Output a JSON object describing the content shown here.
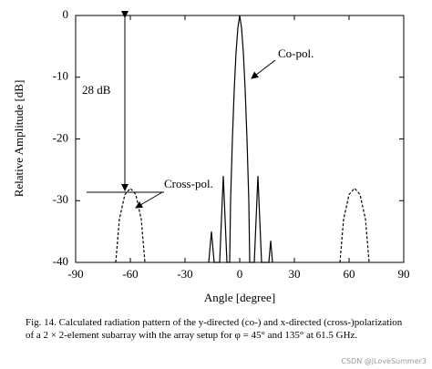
{
  "chart_data": {
    "type": "line",
    "xlabel": "Angle [degree]",
    "ylabel": "Relative Amplitude [dB]",
    "xlim": [
      -90,
      90
    ],
    "xticks": [
      -90,
      -60,
      -30,
      0,
      30,
      60,
      90
    ],
    "ylim": [
      -40,
      0
    ],
    "yticks": [
      0,
      -10,
      -20,
      -30,
      -40
    ],
    "annotation": "28 dB",
    "series": [
      {
        "name": "Co-pol.",
        "color": "#000000",
        "dash": false,
        "x": [
          -17,
          -15.5,
          -14,
          -11,
          -9,
          -7,
          -5.5,
          -5,
          -4,
          -3,
          -2,
          -1,
          0,
          1,
          2,
          3,
          4,
          5,
          5.5,
          8,
          10,
          12,
          16,
          17,
          18
        ],
        "values": [
          -40,
          -35,
          -40,
          -40,
          -26,
          -40,
          -40,
          -30,
          -20,
          -12,
          -6,
          -2,
          0,
          -2,
          -6,
          -12,
          -20,
          -30,
          -40,
          -40,
          -26,
          -40,
          -40,
          -36.5,
          -40
        ]
      },
      {
        "name": "Cross-pol.",
        "color": "#000000",
        "dash": true,
        "x": [
          -68,
          -66,
          -63,
          -60,
          -57,
          -54,
          -52,
          null,
          55,
          57,
          60,
          63,
          66,
          69,
          71
        ],
        "values": [
          -40,
          -33,
          -29,
          -28,
          -29,
          -33,
          -40,
          null,
          -40,
          -33,
          -29,
          -28,
          -29,
          -33,
          -40
        ]
      }
    ]
  },
  "caption": "Fig. 14.  Calculated radiation pattern of the y-directed (co-) and x-directed (cross-)polarization of a 2 × 2-element subarray with the array setup for φ = 45° and 135° at 61.5 GHz.",
  "watermark": "CSDN @JLoveSummer3"
}
